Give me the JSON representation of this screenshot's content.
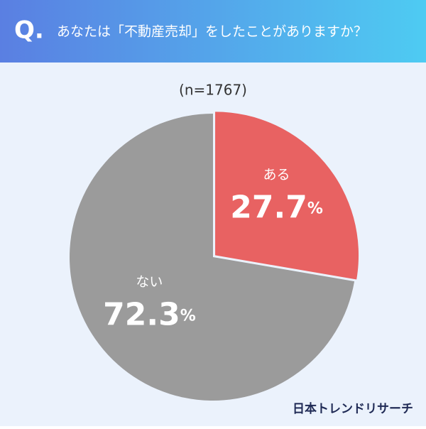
{
  "chart_data": {
    "type": "pie",
    "q_label": "Q.",
    "title": "あなたは「不動産売却」をしたことがありますか？",
    "subtitle": "(n=1767)",
    "categories": [
      "ある",
      "ない"
    ],
    "values": [
      27.7,
      72.3
    ],
    "value_labels": [
      "27.7%",
      "72.3%"
    ],
    "colors": [
      "#e86262",
      "#9b9b9b"
    ],
    "source": "日本トレンドリサーチ"
  }
}
